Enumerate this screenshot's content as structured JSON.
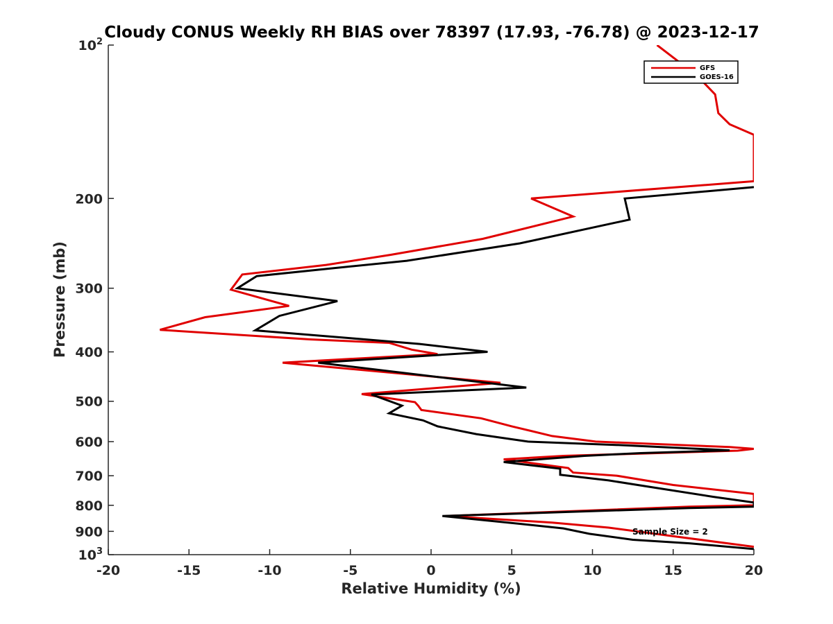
{
  "chart_data": {
    "type": "line",
    "title": "Cloudy CONUS Weekly RH BIAS over 78397 (17.93, -76.78) @ 2023-12-17",
    "xlabel": "Relative Humidity (%)",
    "ylabel": "Pressure (mb)",
    "xlim": [
      -20,
      20
    ],
    "ylim": [
      100,
      1000
    ],
    "yscale": "log",
    "yreversed": true,
    "grid": false,
    "legend_position": "top-right",
    "x_ticks": [
      -20,
      -15,
      -10,
      -5,
      0,
      5,
      10,
      15,
      20
    ],
    "x_tick_labels": [
      "-20",
      "-15",
      "-10",
      "-5",
      "0",
      "5",
      "10",
      "15",
      "20"
    ],
    "y_ticks": [
      100,
      200,
      300,
      400,
      500,
      600,
      700,
      800,
      900,
      1000
    ],
    "y_tick_labels": [
      "10^2",
      "200",
      "300",
      "400",
      "500",
      "600",
      "700",
      "800",
      "900",
      "10^3"
    ],
    "series": [
      {
        "name": "GFS",
        "color": "#e00000",
        "points": [
          [
            14,
            100
          ],
          [
            16.5,
            115
          ],
          [
            17.6,
            125
          ],
          [
            17.8,
            136
          ],
          [
            18.5,
            143
          ],
          [
            20,
            150
          ],
          [
            20,
            185
          ],
          [
            6.2,
            200
          ],
          [
            8.8,
            217
          ],
          [
            3.2,
            240
          ],
          [
            -2.5,
            258
          ],
          [
            -6.5,
            270
          ],
          [
            -11.7,
            282
          ],
          [
            -12.4,
            302
          ],
          [
            -8.8,
            325
          ],
          [
            -14.0,
            342
          ],
          [
            -16.8,
            362
          ],
          [
            -7.5,
            378
          ],
          [
            -2.6,
            384
          ],
          [
            -1.2,
            396
          ],
          [
            0.4,
            404
          ],
          [
            -9.2,
            420
          ],
          [
            4.3,
            460
          ],
          [
            -4.3,
            484
          ],
          [
            -1.0,
            502
          ],
          [
            -0.8,
            510
          ],
          [
            -0.6,
            520
          ],
          [
            3.1,
            540
          ],
          [
            5.0,
            560
          ],
          [
            7.5,
            585
          ],
          [
            10.2,
            600
          ],
          [
            18.5,
            615
          ],
          [
            20,
            620
          ],
          [
            19.0,
            625
          ],
          [
            8.2,
            640
          ],
          [
            4.5,
            650
          ],
          [
            8.5,
            676
          ],
          [
            8.8,
            690
          ],
          [
            11.5,
            700
          ],
          [
            15,
            730
          ],
          [
            20,
            760
          ],
          [
            20,
            800
          ],
          [
            16,
            805
          ],
          [
            0.9,
            840
          ],
          [
            7.5,
            865
          ],
          [
            11.0,
            885
          ],
          [
            15,
            920
          ],
          [
            20,
            965
          ]
        ]
      },
      {
        "name": "GOES-16",
        "color": "#000000",
        "points": [
          [
            20,
            190
          ],
          [
            12.0,
            200
          ],
          [
            12.3,
            220
          ],
          [
            5.5,
            245
          ],
          [
            -1.5,
            265
          ],
          [
            -6.5,
            275
          ],
          [
            -10.8,
            284
          ],
          [
            -12.0,
            300
          ],
          [
            -5.8,
            318
          ],
          [
            -9.4,
            340
          ],
          [
            -10.9,
            363
          ],
          [
            -5.0,
            376
          ],
          [
            -0.7,
            386
          ],
          [
            3.5,
            400
          ],
          [
            -7.0,
            420
          ],
          [
            5.9,
            470
          ],
          [
            -3.7,
            485
          ],
          [
            -1.8,
            510
          ],
          [
            -2.6,
            528
          ],
          [
            -0.5,
            545
          ],
          [
            0.4,
            560
          ],
          [
            2.8,
            580
          ],
          [
            6.0,
            600
          ],
          [
            12.0,
            610
          ],
          [
            18.5,
            624
          ],
          [
            13.0,
            632
          ],
          [
            9.5,
            640
          ],
          [
            4.5,
            658
          ],
          [
            8.0,
            678
          ],
          [
            8.0,
            697
          ],
          [
            11.0,
            715
          ],
          [
            14.0,
            740
          ],
          [
            17.5,
            770
          ],
          [
            20,
            790
          ],
          [
            20,
            805
          ],
          [
            16,
            810
          ],
          [
            0.7,
            840
          ],
          [
            5.5,
            870
          ],
          [
            8.2,
            888
          ],
          [
            9.8,
            910
          ],
          [
            12.5,
            935
          ],
          [
            16,
            950
          ],
          [
            20,
            975
          ]
        ]
      }
    ],
    "annotations": [
      "Sample Size = 2"
    ]
  }
}
